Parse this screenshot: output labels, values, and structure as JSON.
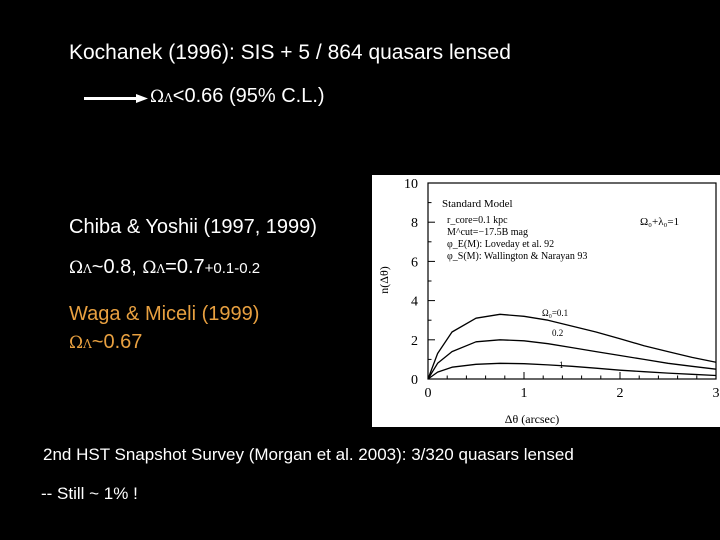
{
  "slide": {
    "line1": "Kochanek (1996): SIS + 5 / 864 quasars  lensed",
    "omega_symbol": "Ω",
    "lambda_symbol": "Λ",
    "line2_value": "<0.66  (95% C.L.)",
    "line3": "Chiba & Yoshii (1997, 1999)",
    "line4_a": "~0.8,  ",
    "line4_b": "=0.7",
    "line4_err": "+0.1-0.2",
    "line5": "Waga & Miceli (1999)",
    "line6_value": "~0.67",
    "line7": "2nd HST Snapshot Survey (Morgan et al. 2003): 3/320 quasars lensed",
    "line8": "-- Still  ~ 1% !",
    "colors": {
      "background": "#000000",
      "text": "#ffffff",
      "highlight": "#e8a040"
    }
  },
  "figure": {
    "legend_title": "Standard Model",
    "legend_line1": "r_core=0.1 kpc",
    "legend_line2": "M^cut=−17.5B mag",
    "legend_line3": "φ_E(M): Loveday et al. 92",
    "legend_line4": "φ_S(M): Wallington & Narayan 93",
    "model_note": "Ω₀+λ₀=1",
    "curve_labels": [
      "Ω₀=0.1",
      "0.2",
      "1"
    ],
    "xlabel": "Δθ (arcsec)",
    "ylabel": "n(Δθ)",
    "xticks": [
      "0",
      "1",
      "2",
      "3"
    ],
    "yticks": [
      "0",
      "2",
      "4",
      "6",
      "8",
      "10"
    ]
  },
  "chart_data": {
    "type": "line",
    "xlabel": "Δθ (arcsec)",
    "ylabel": "n(Δθ)",
    "xlim": [
      0,
      3
    ],
    "ylim": [
      0,
      10
    ],
    "series": [
      {
        "name": "Ω₀=0.1",
        "x": [
          0,
          0.1,
          0.25,
          0.5,
          0.75,
          1.0,
          1.25,
          1.5,
          1.75,
          2.0,
          2.25,
          2.5,
          2.75,
          3.0
        ],
        "values": [
          0,
          1.3,
          2.4,
          3.1,
          3.3,
          3.2,
          3.0,
          2.7,
          2.4,
          2.05,
          1.7,
          1.4,
          1.1,
          0.85
        ]
      },
      {
        "name": "0.2",
        "x": [
          0,
          0.1,
          0.25,
          0.5,
          0.75,
          1.0,
          1.25,
          1.5,
          1.75,
          2.0,
          2.25,
          2.5,
          2.75,
          3.0
        ],
        "values": [
          0,
          0.8,
          1.4,
          1.9,
          2.0,
          1.95,
          1.8,
          1.6,
          1.4,
          1.2,
          1.0,
          0.8,
          0.65,
          0.5
        ]
      },
      {
        "name": "1",
        "x": [
          0,
          0.1,
          0.25,
          0.5,
          0.75,
          1.0,
          1.25,
          1.5,
          1.75,
          2.0,
          2.25,
          2.5,
          2.75,
          3.0
        ],
        "values": [
          0,
          0.35,
          0.6,
          0.75,
          0.8,
          0.78,
          0.72,
          0.65,
          0.55,
          0.45,
          0.37,
          0.3,
          0.24,
          0.18
        ]
      }
    ]
  }
}
